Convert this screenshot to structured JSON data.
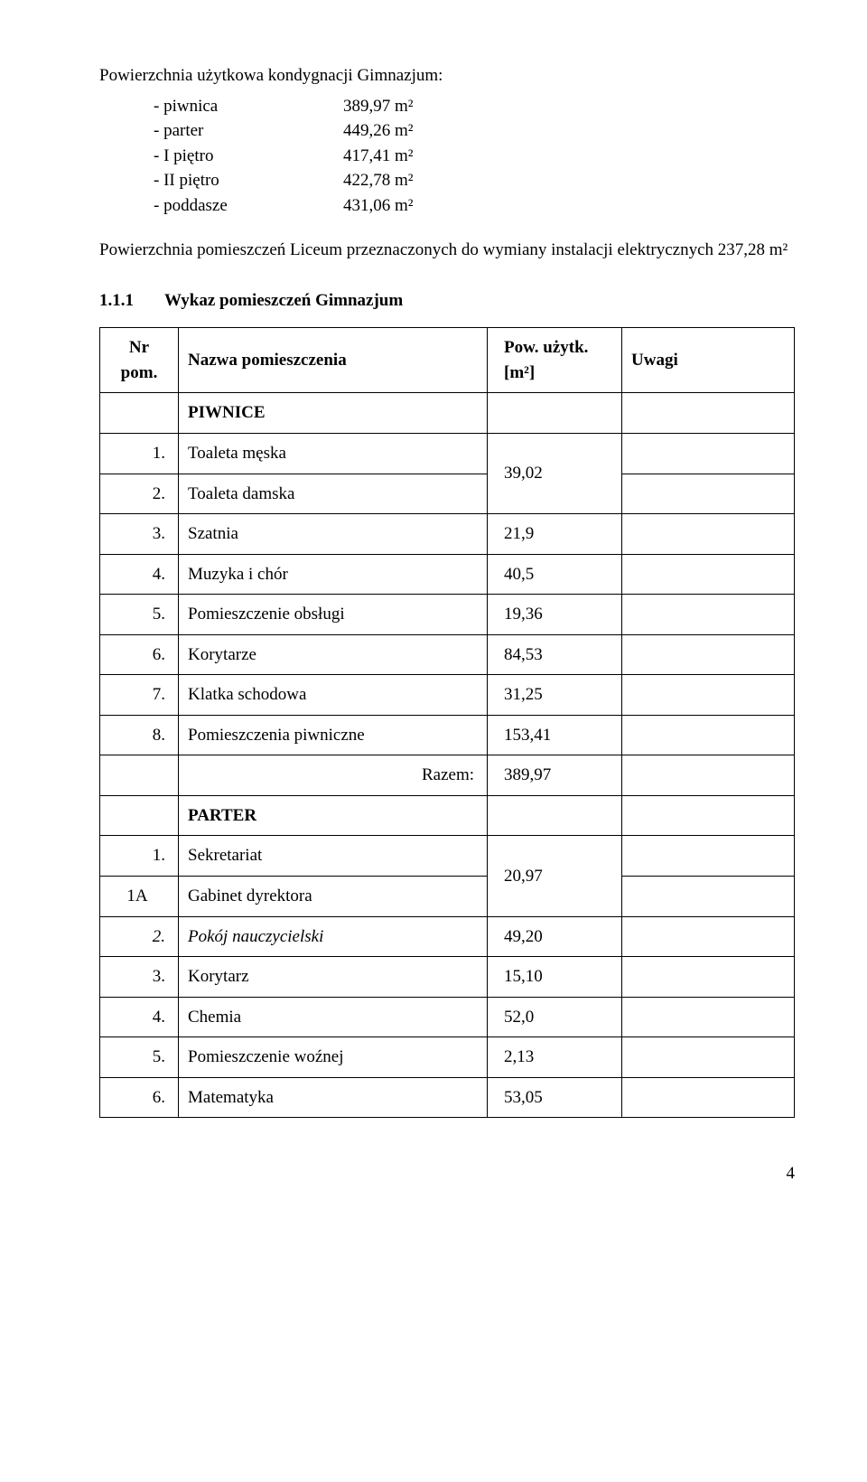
{
  "intro": {
    "title": "Powierzchnia użytkowa kondygnacji Gimnazjum:",
    "rows": [
      {
        "label": "- piwnica",
        "value": "389,97 m²"
      },
      {
        "label": "- parter",
        "value": "449,26 m²"
      },
      {
        "label": "- I piętro",
        "value": "417,41 m²"
      },
      {
        "label": "- II piętro",
        "value": "422,78 m²"
      },
      {
        "label": "- poddasze",
        "value": "431,06 m²"
      }
    ]
  },
  "paragraph": "Powierzchnia pomieszczeń Liceum przeznaczonych do wymiany instalacji elektrycznych 237,28 m²",
  "section": {
    "number": "1.1.1",
    "title": "Wykaz pomieszczeń Gimnazjum"
  },
  "table": {
    "headers": {
      "nr": "Nr pom.",
      "name": "Nazwa pomieszczenia",
      "area": "Pow. użytk. [m²]",
      "notes": "Uwagi"
    },
    "section_piwnice": "PIWNICE",
    "piwnice_rows": {
      "r1": {
        "nr": "1.",
        "name": "Toaleta męska"
      },
      "r2": {
        "nr": "2.",
        "name": "Toaleta damska"
      },
      "merged_area_12": "39,02",
      "r3": {
        "nr": "3.",
        "name": "Szatnia",
        "area": "21,9"
      },
      "r4": {
        "nr": "4.",
        "name": "Muzyka i chór",
        "area": "40,5"
      },
      "r5": {
        "nr": "5.",
        "name": "Pomieszczenie obsługi",
        "area": "19,36"
      },
      "r6": {
        "nr": "6.",
        "name": "Korytarze",
        "area": "84,53"
      },
      "r7": {
        "nr": "7.",
        "name": "Klatka schodowa",
        "area": "31,25"
      },
      "r8": {
        "nr": "8.",
        "name": "Pomieszczenia piwniczne",
        "area": "153,41"
      }
    },
    "sum1": {
      "label": "Razem:",
      "value": "389,97"
    },
    "section_parter": "PARTER",
    "parter_rows": {
      "r1": {
        "nr": "1.",
        "name": "Sekretariat"
      },
      "r1a": {
        "nr": "1A",
        "name": "Gabinet dyrektora"
      },
      "merged_area_1_1a": "20,97",
      "r2": {
        "nr": "2.",
        "name": "Pokój nauczycielski",
        "area": "49,20",
        "italic": true
      },
      "r3": {
        "nr": "3.",
        "name": "Korytarz",
        "area": "15,10"
      },
      "r4": {
        "nr": "4.",
        "name": "Chemia",
        "area": "52,0"
      },
      "r5": {
        "nr": "5.",
        "name": "Pomieszczenie woźnej",
        "area": "2,13"
      },
      "r6": {
        "nr": "6.",
        "name": "Matematyka",
        "area": "53,05"
      }
    }
  },
  "page_number": "4"
}
